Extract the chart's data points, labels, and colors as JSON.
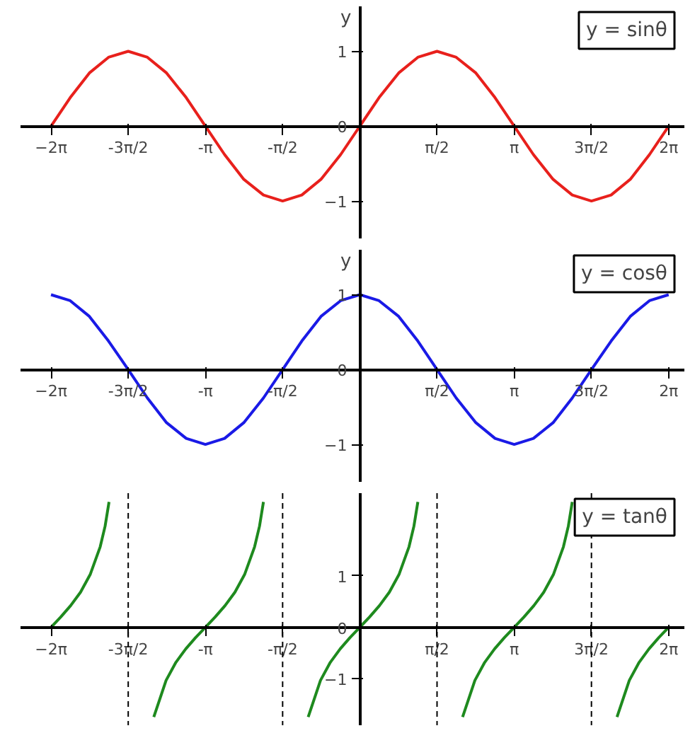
{
  "chart_data": [
    {
      "type": "line",
      "title": "y = sinθ",
      "ylabel": "y",
      "xlim": [
        -6.9,
        6.6
      ],
      "ylim": [
        -1.5,
        1.6
      ],
      "xticks": [
        {
          "value": -6.28,
          "label": "−2π"
        },
        {
          "value": -4.71,
          "label": "-3π/2"
        },
        {
          "value": -3.14,
          "label": "-π"
        },
        {
          "value": -1.57,
          "label": "-π/2"
        },
        {
          "value": 1.57,
          "label": "π/2"
        },
        {
          "value": 3.14,
          "label": "π"
        },
        {
          "value": 4.71,
          "label": "3π/2"
        },
        {
          "value": 6.28,
          "label": "2π"
        }
      ],
      "yticks": [
        -1,
        0,
        1
      ],
      "x": [
        -6.28,
        -5.89,
        -5.5,
        -5.11,
        -4.71,
        -4.32,
        -3.93,
        -3.53,
        -3.14,
        -2.75,
        -2.36,
        -1.96,
        -1.57,
        -1.18,
        -0.79,
        -0.39,
        0,
        0.39,
        0.79,
        1.18,
        1.57,
        1.96,
        2.36,
        2.75,
        3.14,
        3.53,
        3.93,
        4.32,
        4.71,
        5.11,
        5.5,
        5.89,
        6.28
      ],
      "series": [
        {
          "color": "#e8201c",
          "values": [
            0,
            0.38,
            0.71,
            0.92,
            1,
            0.92,
            0.71,
            0.38,
            0,
            -0.38,
            -0.71,
            -0.92,
            -1,
            -0.92,
            -0.71,
            -0.38,
            0,
            0.38,
            0.71,
            0.92,
            1,
            0.92,
            0.71,
            0.38,
            0,
            -0.38,
            -0.71,
            -0.92,
            -1,
            -0.92,
            -0.71,
            -0.38,
            0
          ]
        }
      ]
    },
    {
      "type": "line",
      "title": "y = cosθ",
      "ylabel": "y",
      "xlim": [
        -6.9,
        6.6
      ],
      "ylim": [
        -1.5,
        1.6
      ],
      "xticks": [
        {
          "value": -6.28,
          "label": "−2π"
        },
        {
          "value": -4.71,
          "label": "-3π/2"
        },
        {
          "value": -3.14,
          "label": "-π"
        },
        {
          "value": -1.57,
          "label": "-π/2"
        },
        {
          "value": 1.57,
          "label": "π/2"
        },
        {
          "value": 3.14,
          "label": "π"
        },
        {
          "value": 4.71,
          "label": "3π/2"
        },
        {
          "value": 6.28,
          "label": "2π"
        }
      ],
      "yticks": [
        -1,
        0,
        1
      ],
      "x": [
        -6.28,
        -5.89,
        -5.5,
        -5.11,
        -4.71,
        -4.32,
        -3.93,
        -3.53,
        -3.14,
        -2.75,
        -2.36,
        -1.96,
        -1.57,
        -1.18,
        -0.79,
        -0.39,
        0,
        0.39,
        0.79,
        1.18,
        1.57,
        1.96,
        2.36,
        2.75,
        3.14,
        3.53,
        3.93,
        4.32,
        4.71,
        5.11,
        5.5,
        5.89,
        6.28
      ],
      "series": [
        {
          "color": "#1a1ae6",
          "values": [
            1,
            0.92,
            0.71,
            0.38,
            0,
            -0.38,
            -0.71,
            -0.92,
            -1,
            -0.92,
            -0.71,
            -0.38,
            0,
            0.38,
            0.71,
            0.92,
            1,
            0.92,
            0.71,
            0.38,
            0,
            -0.38,
            -0.71,
            -0.92,
            -1,
            -0.92,
            -0.71,
            -0.38,
            0,
            0.38,
            0.71,
            0.92,
            1
          ]
        }
      ]
    },
    {
      "type": "line",
      "title": "y = tanθ",
      "xlim": [
        -6.9,
        6.6
      ],
      "ylim": [
        -1.9,
        2.6
      ],
      "xticks": [
        {
          "value": -6.28,
          "label": "−2π"
        },
        {
          "value": -4.71,
          "label": "-3π/2"
        },
        {
          "value": -3.14,
          "label": "-π"
        },
        {
          "value": -1.57,
          "label": "-π/2"
        },
        {
          "value": 1.57,
          "label": "π/2"
        },
        {
          "value": 3.14,
          "label": "π"
        },
        {
          "value": 4.71,
          "label": "3π/2"
        },
        {
          "value": 6.28,
          "label": "2π"
        }
      ],
      "yticks": [
        -1,
        0,
        1
      ],
      "series": [
        {
          "color": "#1e8a1e",
          "x": [
            -6.28,
            -6.08,
            -5.88,
            -5.68,
            -5.48,
            -5.28,
            -5.18,
            -5.1
          ],
          "values": [
            0,
            0.2,
            0.42,
            0.68,
            1.03,
            1.56,
            1.96,
            2.43
          ]
        },
        {
          "color": "#1e8a1e",
          "x": [
            -4.19,
            -3.94,
            -3.74,
            -3.54,
            -3.34,
            -3.14,
            -2.94,
            -2.74,
            -2.54,
            -2.34,
            -2.14,
            -2.04,
            -1.96
          ],
          "values": [
            -1.74,
            -1.03,
            -0.68,
            -0.42,
            -0.2,
            0,
            0.2,
            0.42,
            0.68,
            1.03,
            1.56,
            1.96,
            2.43
          ]
        },
        {
          "color": "#1e8a1e",
          "x": [
            -1.05,
            -0.8,
            -0.6,
            -0.4,
            -0.2,
            0,
            0.2,
            0.4,
            0.6,
            0.8,
            1,
            1.1,
            1.18
          ],
          "values": [
            -1.74,
            -1.03,
            -0.68,
            -0.42,
            -0.2,
            0,
            0.2,
            0.42,
            0.68,
            1.03,
            1.56,
            1.96,
            2.43
          ]
        },
        {
          "color": "#1e8a1e",
          "x": [
            2.09,
            2.34,
            2.54,
            2.74,
            2.94,
            3.14,
            3.34,
            3.54,
            3.74,
            3.94,
            4.14,
            4.24,
            4.32
          ],
          "values": [
            -1.74,
            -1.03,
            -0.68,
            -0.42,
            -0.2,
            0,
            0.2,
            0.42,
            0.68,
            1.03,
            1.56,
            1.96,
            2.43
          ]
        },
        {
          "color": "#1e8a1e",
          "x": [
            5.23,
            5.48,
            5.68,
            5.88,
            6.08,
            6.28
          ],
          "values": [
            -1.74,
            -1.03,
            -0.68,
            -0.42,
            -0.2,
            0
          ]
        }
      ],
      "ref_lines": [
        {
          "axis": "x",
          "value": -4.71,
          "color": "#000000",
          "line_style": "dashed"
        },
        {
          "axis": "x",
          "value": -1.57,
          "color": "#000000",
          "line_style": "dashed"
        },
        {
          "axis": "x",
          "value": 1.57,
          "color": "#000000",
          "line_style": "dashed"
        },
        {
          "axis": "x",
          "value": 4.71,
          "color": "#000000",
          "line_style": "dashed"
        }
      ]
    }
  ]
}
